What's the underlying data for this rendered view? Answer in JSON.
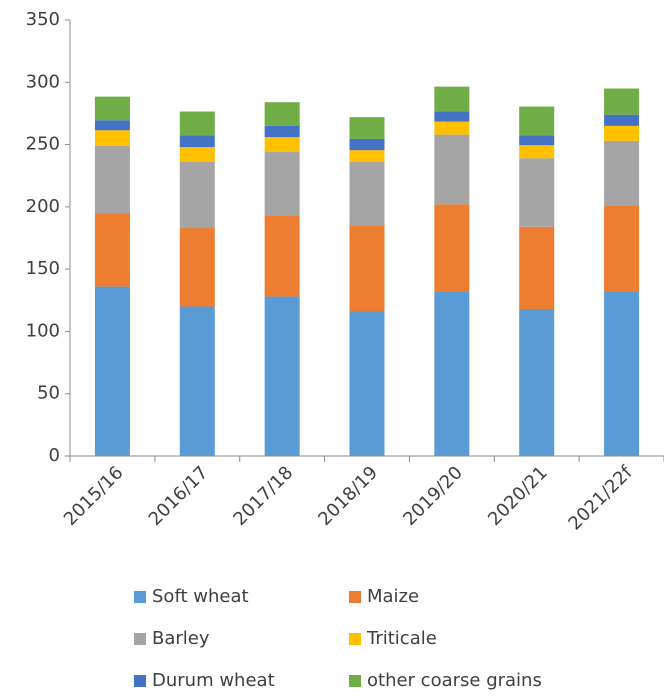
{
  "chart_data": {
    "type": "stacked_bar",
    "categories": [
      "2015/16",
      "2016/17",
      "2017/18",
      "2018/19",
      "2019/20",
      "2020/21",
      "2021/22f"
    ],
    "series": [
      {
        "name": "Soft wheat",
        "color": "#5b9bd5",
        "values": [
          136,
          120,
          128,
          116,
          132,
          118,
          132
        ]
      },
      {
        "name": "Maize",
        "color": "#ed7d31",
        "values": [
          59,
          63,
          65,
          69,
          70,
          66,
          69
        ]
      },
      {
        "name": "Barley",
        "color": "#a5a5a5",
        "values": [
          54,
          53,
          51,
          51,
          56,
          55,
          52
        ]
      },
      {
        "name": "Triticale",
        "color": "#ffc000",
        "values": [
          12.5,
          12,
          12,
          9.5,
          10.5,
          10.5,
          12
        ]
      },
      {
        "name": "Durum wheat",
        "color": "#4472c4",
        "values": [
          8,
          9.5,
          9,
          9,
          8,
          8,
          9
        ]
      },
      {
        "name": "other coarse grains",
        "color": "#70ad47",
        "values": [
          19,
          19,
          19,
          17.5,
          20,
          23,
          21
        ]
      }
    ],
    "ylim": [
      0,
      350
    ],
    "yticks": [
      0,
      50,
      100,
      150,
      200,
      250,
      300,
      350
    ],
    "grid": false
  }
}
